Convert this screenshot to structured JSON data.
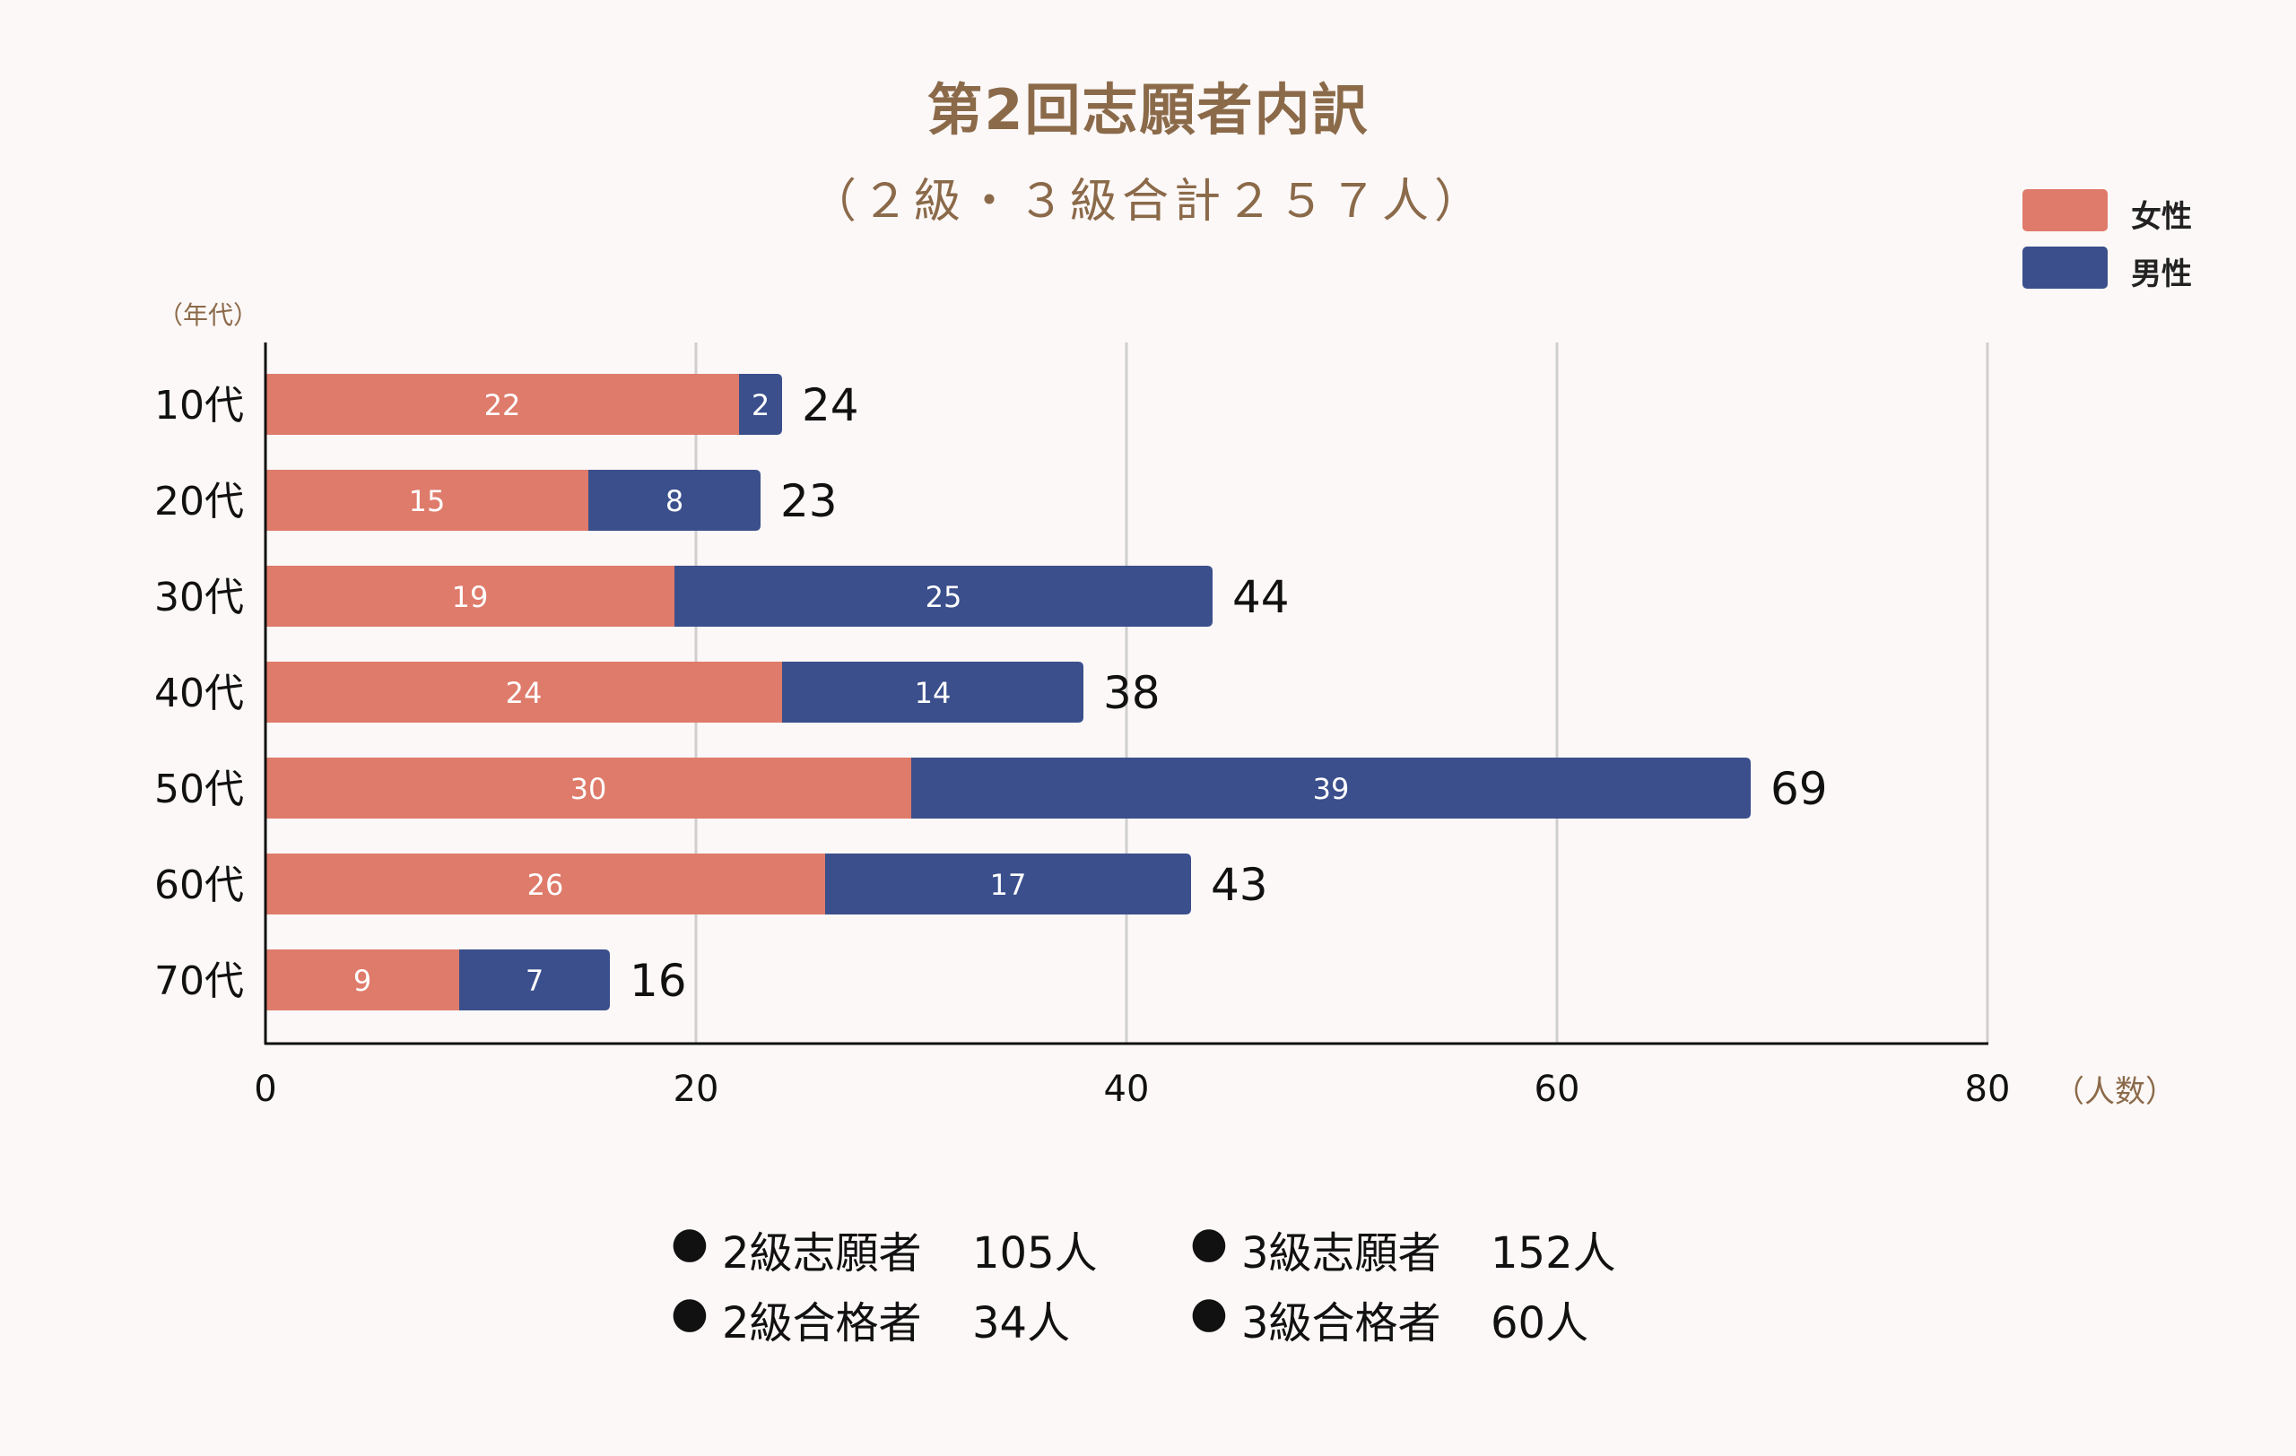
{
  "chart_data": {
    "type": "bar",
    "orientation": "horizontal",
    "stacked": true,
    "title": "第2回志願者内訳",
    "subtitle": "（２級・３級合計２５７人）",
    "ylabel": "（年代）",
    "xlabel": "（人数）",
    "xlim": [
      0,
      80
    ],
    "xticks": [
      "0",
      "20",
      "40",
      "60",
      "80"
    ],
    "xtick_values": [
      0,
      20,
      40,
      60,
      80
    ],
    "grid": true,
    "legend_position": "top-right",
    "categories": [
      "10代",
      "20代",
      "30代",
      "40代",
      "50代",
      "60代",
      "70代"
    ],
    "series": [
      {
        "name": "女性",
        "color": "#df7b6b",
        "values": [
          22,
          15,
          19,
          24,
          30,
          26,
          9
        ]
      },
      {
        "name": "男性",
        "color": "#3b4f8c",
        "values": [
          2,
          8,
          25,
          14,
          39,
          17,
          7
        ]
      }
    ],
    "totals": [
      24,
      23,
      44,
      38,
      69,
      43,
      16
    ]
  },
  "stats": [
    {
      "bullet": "●",
      "label": "2級志願者",
      "value": "105人"
    },
    {
      "bullet": "●",
      "label": "3級志願者",
      "value": "152人"
    },
    {
      "bullet": "●",
      "label": "2級合格者",
      "value": "34人"
    },
    {
      "bullet": "●",
      "label": "3級合格者",
      "value": "60人"
    }
  ]
}
